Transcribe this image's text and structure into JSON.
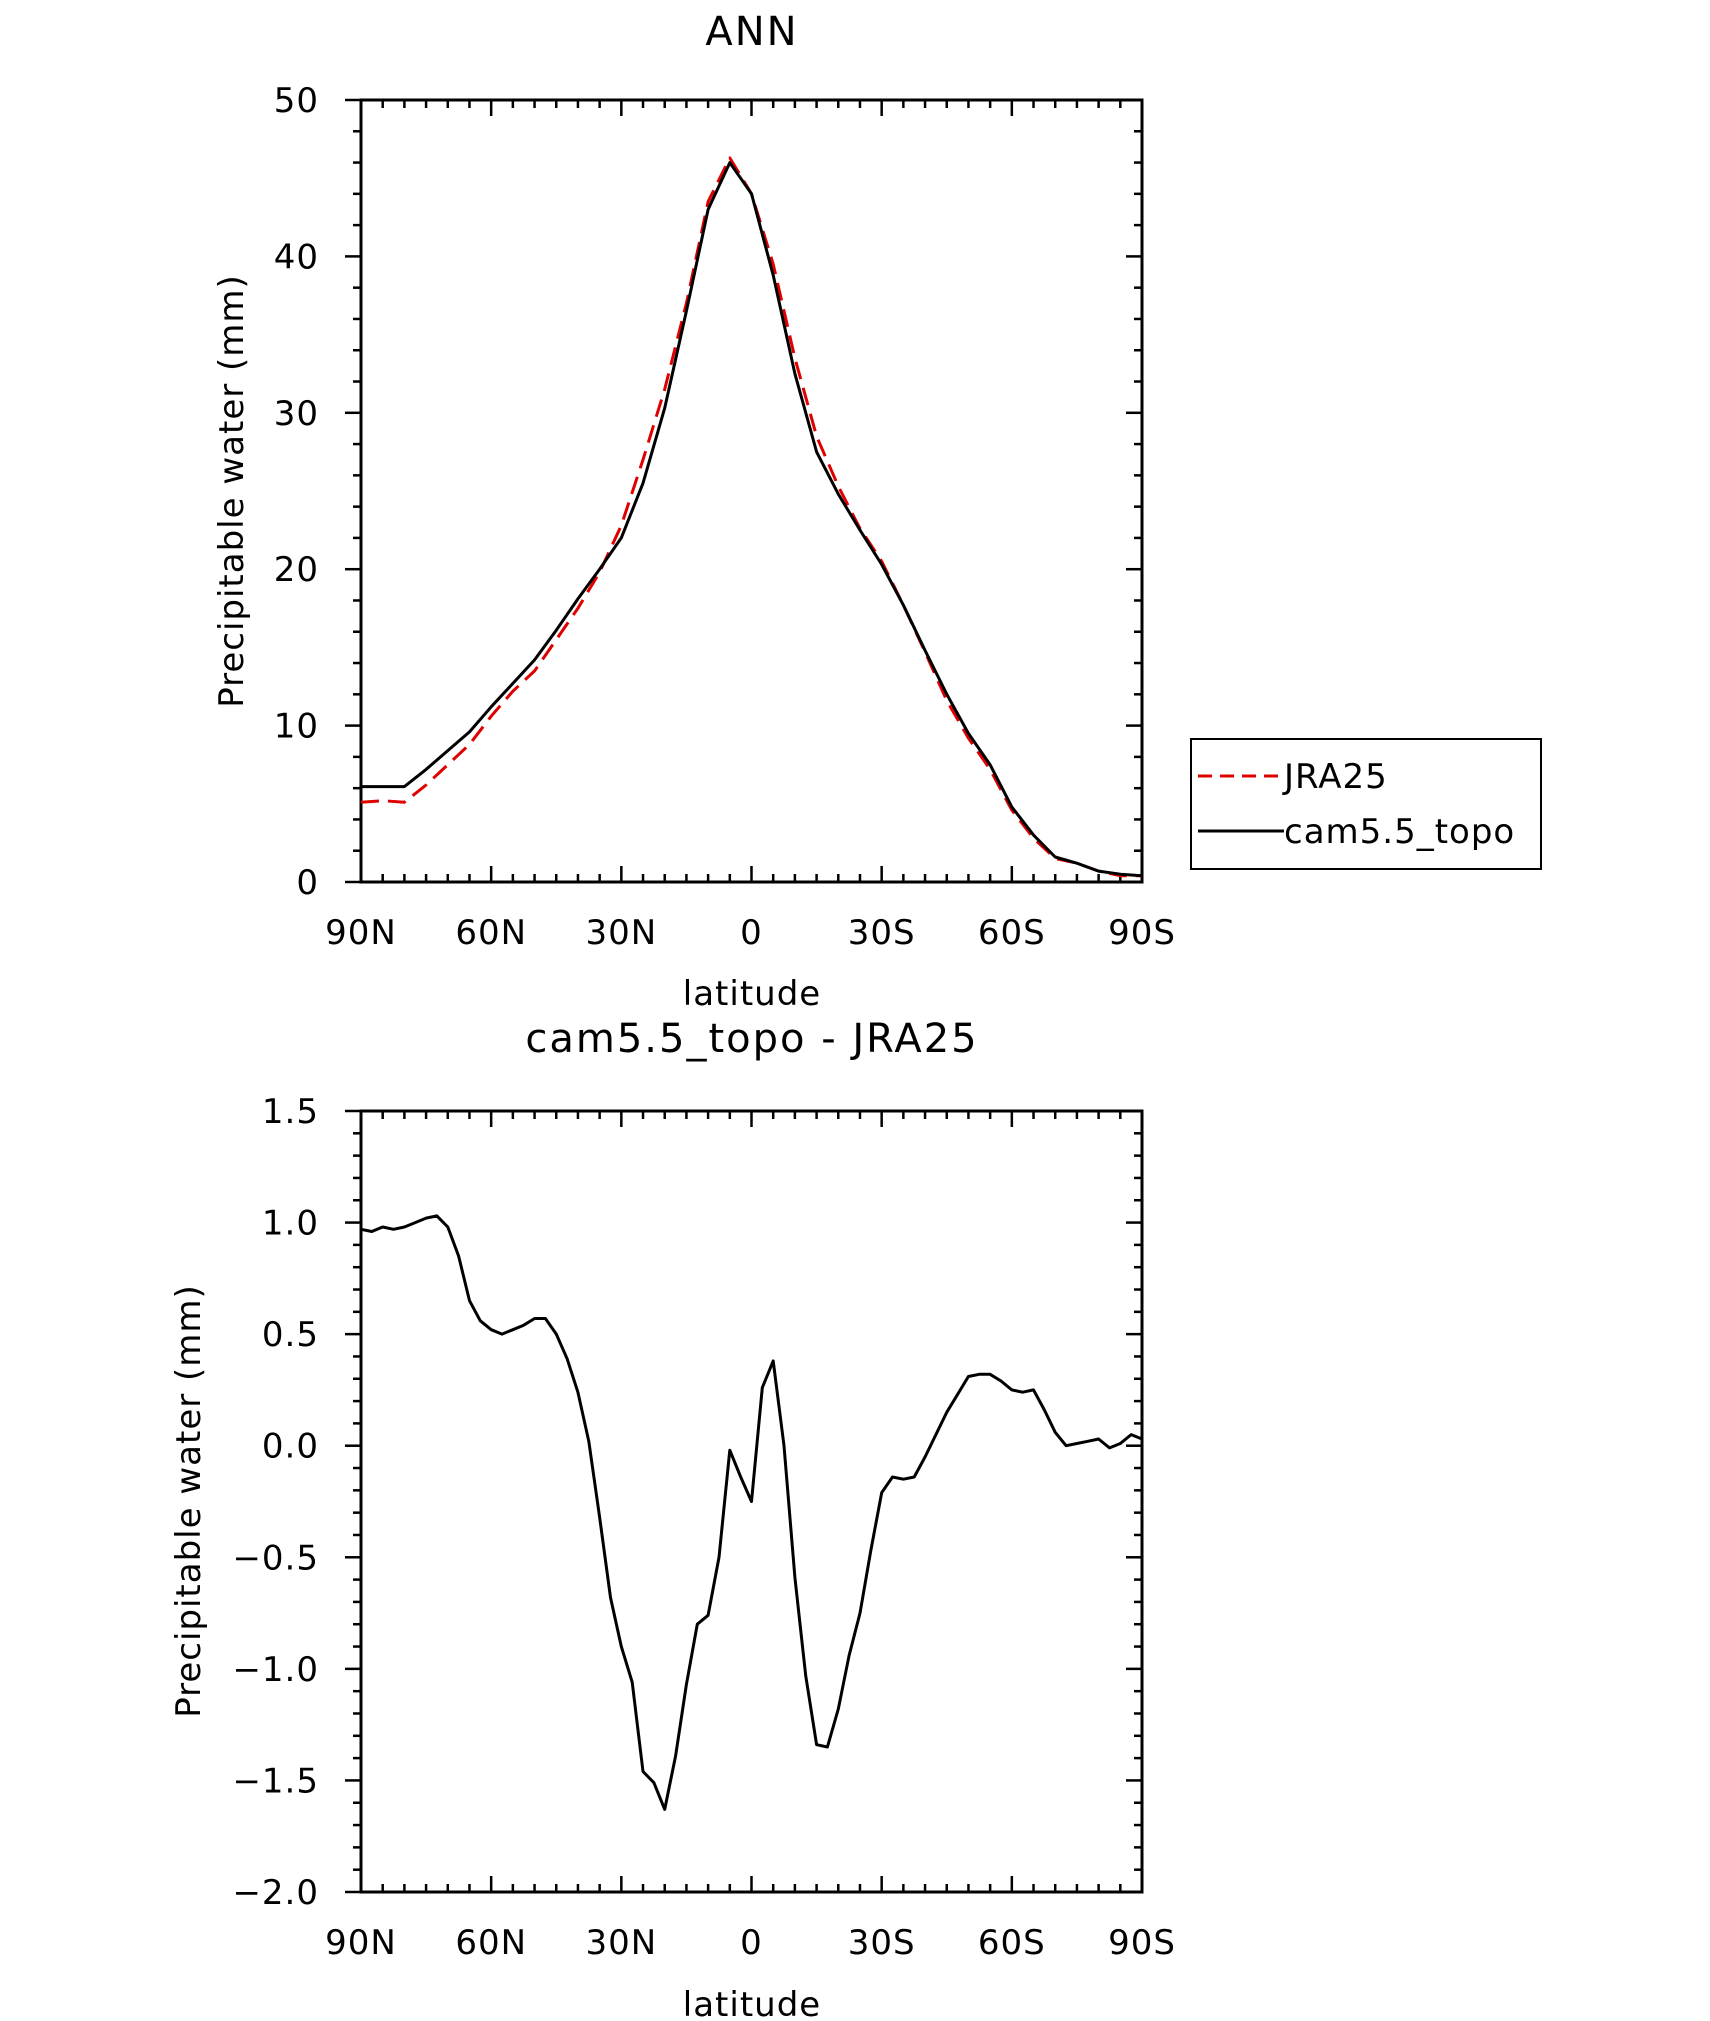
{
  "chart_data": [
    {
      "type": "line",
      "title": "ANN",
      "xlabel": "latitude",
      "ylabel": "Precipitable water (mm)",
      "xlim": [
        90,
        -90
      ],
      "ylim": [
        0,
        50
      ],
      "x_ticks": [
        90,
        60,
        30,
        0,
        -30,
        -60,
        -90
      ],
      "x_tick_labels": [
        "90N",
        "60N",
        "30N",
        "0",
        "30S",
        "60S",
        "90S"
      ],
      "y_ticks": [
        0,
        10,
        20,
        30,
        40,
        50
      ],
      "y_tick_labels": [
        "0",
        "10",
        "20",
        "30",
        "40",
        "50"
      ],
      "legend_position": "right",
      "x": [
        90,
        85,
        80,
        75,
        70,
        65,
        60,
        55,
        50,
        45,
        40,
        35,
        30,
        25,
        20,
        15,
        10,
        5,
        0,
        -5,
        -10,
        -15,
        -20,
        -25,
        -30,
        -35,
        -40,
        -45,
        -50,
        -55,
        -60,
        -65,
        -70,
        -75,
        -80,
        -85,
        -90
      ],
      "series": [
        {
          "name": "JRA25",
          "color": "#e00000",
          "style": "dashed",
          "values": [
            5.1,
            5.2,
            5.1,
            6.2,
            7.5,
            8.8,
            10.6,
            12.2,
            13.5,
            15.5,
            17.5,
            19.8,
            22.8,
            27.0,
            31.5,
            37.0,
            43.5,
            46.3,
            44.0,
            39.5,
            33.5,
            28.5,
            25.3,
            22.6,
            20.5,
            17.7,
            14.7,
            11.6,
            9.2,
            7.2,
            4.6,
            2.8,
            1.5,
            1.2,
            0.7,
            0.4,
            0.4
          ]
        },
        {
          "name": "cam5.5_topo",
          "color": "#000000",
          "style": "solid",
          "values": [
            6.1,
            6.1,
            6.1,
            7.2,
            8.4,
            9.6,
            11.2,
            12.7,
            14.2,
            16.1,
            18.1,
            20.0,
            22.0,
            25.5,
            30.3,
            36.5,
            43.0,
            46.0,
            44.0,
            38.8,
            32.5,
            27.5,
            24.8,
            22.5,
            20.3,
            17.7,
            14.8,
            12.0,
            9.5,
            7.5,
            4.8,
            3.0,
            1.6,
            1.2,
            0.7,
            0.5,
            0.4
          ]
        }
      ]
    },
    {
      "type": "line",
      "title": "cam5.5_topo - JRA25",
      "xlabel": "latitude",
      "ylabel": "Precipitable water (mm)",
      "xlim": [
        90,
        -90
      ],
      "ylim": [
        -2.0,
        1.5
      ],
      "x_ticks": [
        90,
        60,
        30,
        0,
        -30,
        -60,
        -90
      ],
      "x_tick_labels": [
        "90N",
        "60N",
        "30N",
        "0",
        "30S",
        "60S",
        "90S"
      ],
      "y_ticks": [
        -2.0,
        -1.5,
        -1.0,
        -0.5,
        0.0,
        0.5,
        1.0,
        1.5
      ],
      "y_tick_labels": [
        "−2.0",
        "−1.5",
        "−1.0",
        "−0.5",
        "0.0",
        "0.5",
        "1.0",
        "1.5"
      ],
      "x": [
        90,
        87.5,
        85,
        82.5,
        80,
        77.5,
        75,
        72.5,
        70,
        67.5,
        65,
        62.5,
        60,
        57.5,
        55,
        52.5,
        50,
        47.5,
        45,
        42.5,
        40,
        37.5,
        35,
        32.5,
        30,
        27.5,
        25,
        22.5,
        20,
        17.5,
        15,
        12.5,
        10,
        7.5,
        5,
        2.5,
        0,
        -2.5,
        -5,
        -7.5,
        -10,
        -12.5,
        -15,
        -17.5,
        -20,
        -22.5,
        -25,
        -27.5,
        -30,
        -32.5,
        -35,
        -37.5,
        -40,
        -42.5,
        -45,
        -47.5,
        -50,
        -52.5,
        -55,
        -57.5,
        -60,
        -62.5,
        -65,
        -67.5,
        -70,
        -72.5,
        -75,
        -77.5,
        -80,
        -82.5,
        -85,
        -87.5,
        -90
      ],
      "series": [
        {
          "color": "#000000",
          "style": "solid",
          "values": [
            0.97,
            0.96,
            0.98,
            0.97,
            0.98,
            1.0,
            1.02,
            1.03,
            0.98,
            0.85,
            0.65,
            0.56,
            0.52,
            0.5,
            0.52,
            0.54,
            0.57,
            0.57,
            0.5,
            0.39,
            0.24,
            0.02,
            -0.32,
            -0.68,
            -0.9,
            -1.06,
            -1.46,
            -1.51,
            -1.63,
            -1.39,
            -1.07,
            -0.8,
            -0.76,
            -0.5,
            -0.02,
            -0.14,
            -0.25,
            0.26,
            0.38,
            0.0,
            -0.59,
            -1.03,
            -1.34,
            -1.35,
            -1.18,
            -0.94,
            -0.75,
            -0.47,
            -0.21,
            -0.14,
            -0.15,
            -0.14,
            -0.05,
            0.05,
            0.15,
            0.23,
            0.31,
            0.32,
            0.32,
            0.29,
            0.25,
            0.24,
            0.25,
            0.16,
            0.06,
            0.0,
            0.01,
            0.02,
            0.03,
            -0.01,
            0.01,
            0.05,
            0.03
          ]
        }
      ]
    }
  ],
  "legend": {
    "entries": [
      "JRA25",
      "cam5.5_topo"
    ]
  }
}
